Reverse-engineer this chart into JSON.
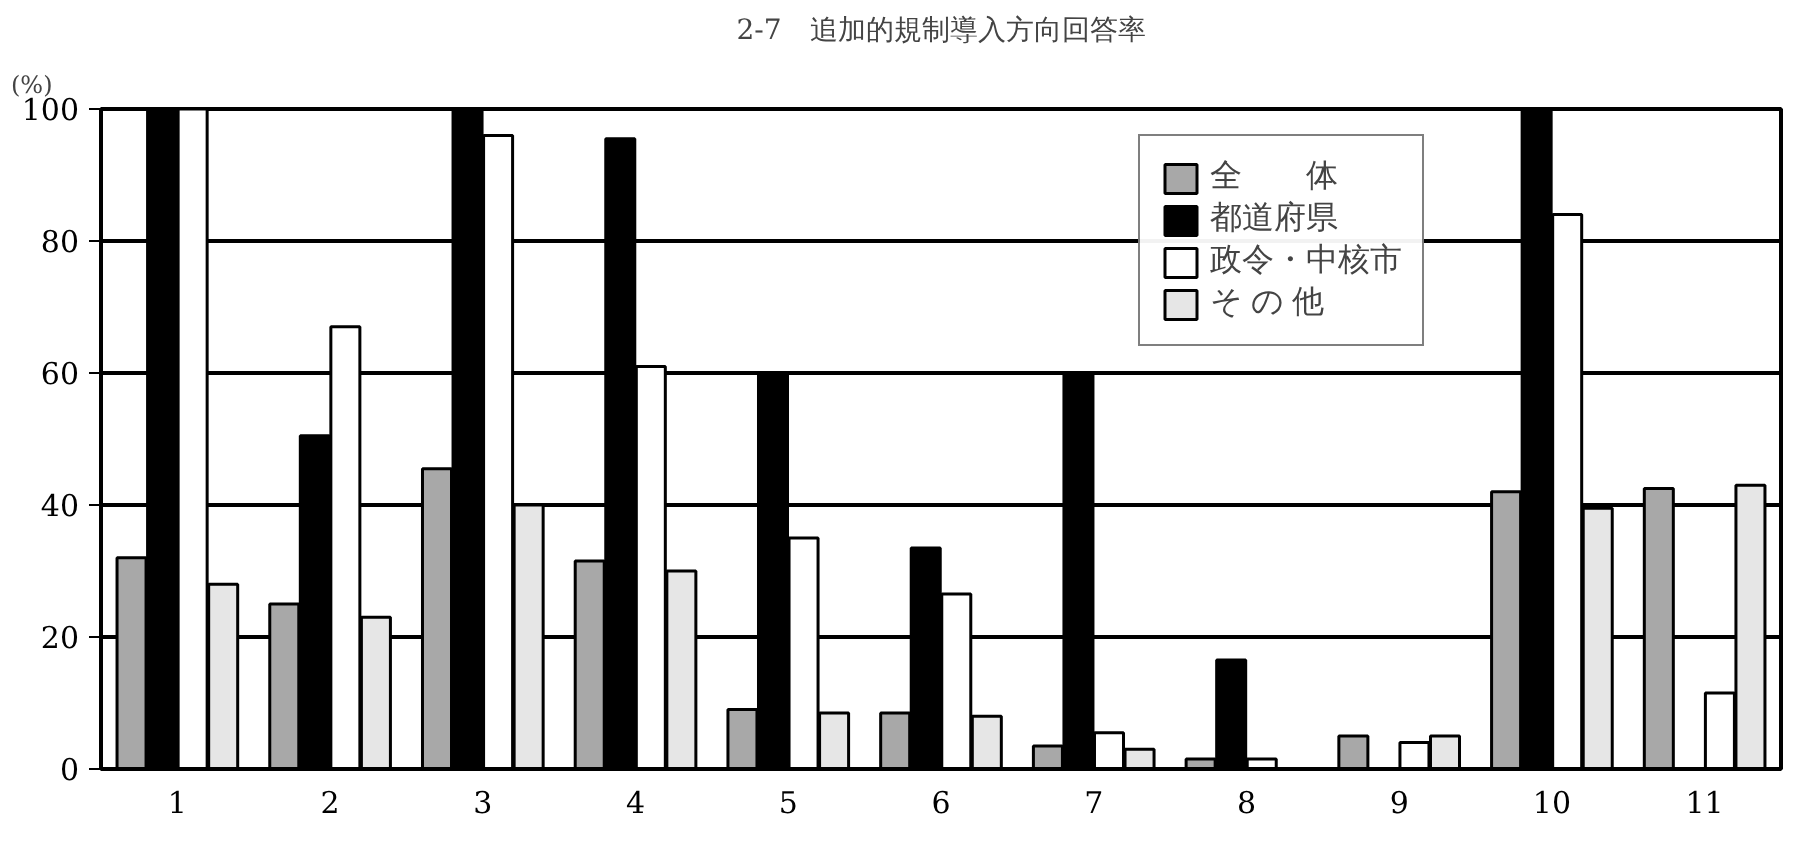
{
  "chart_data": {
    "type": "bar",
    "title": "2-7　追加的規制導入方向回答率",
    "ylabel": "(%)",
    "categories": [
      "1",
      "2",
      "3",
      "4",
      "5",
      "6",
      "7",
      "8",
      "9",
      "10",
      "11"
    ],
    "series": [
      {
        "name": "全　　体",
        "color": "#a8a8a8",
        "values": [
          32,
          25,
          45.5,
          31.5,
          9,
          8.5,
          3.5,
          1.5,
          5,
          42,
          42.5
        ]
      },
      {
        "name": "都道府県",
        "color": "#000000",
        "values": [
          100,
          50.5,
          100,
          95.5,
          60,
          33.5,
          60,
          16.5,
          0,
          100,
          0
        ]
      },
      {
        "name": "政令・中核市",
        "color": "#ffffff",
        "values": [
          100,
          67,
          96,
          61,
          35,
          26.5,
          5.5,
          1.5,
          4,
          84,
          11.5
        ]
      },
      {
        "name": "そ の 他",
        "color": "#e6e6e6",
        "values": [
          28,
          23,
          40,
          30,
          8.5,
          8,
          3,
          0,
          5,
          39.5,
          43
        ]
      }
    ],
    "ylim": [
      0,
      100
    ],
    "yticks": [
      0,
      20,
      40,
      60,
      80,
      100
    ],
    "grid": "y",
    "legend": "top right"
  }
}
